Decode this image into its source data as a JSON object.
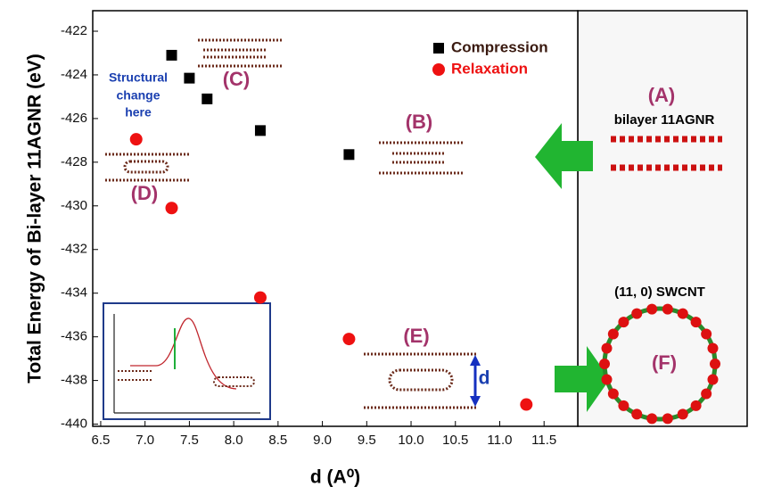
{
  "chart_data": {
    "type": "scatter",
    "x_label": "d (A⁰)",
    "y_label": "Total Energy of Bi-layer 11AGNR (eV)",
    "xlim": [
      6.41,
      11.88
    ],
    "ylim": [
      -440.1,
      -421.06
    ],
    "xticks": [
      6.5,
      {
        "value": 7,
        "label": "7.0"
      },
      7.5,
      {
        "value": 8,
        "label": "8.0"
      },
      8.5,
      {
        "value": 9,
        "label": "9.0"
      },
      9.5,
      {
        "value": 10,
        "label": "10.0"
      },
      10.5,
      {
        "value": 11,
        "label": "11.0"
      },
      11.5
    ],
    "yticks": [
      -422,
      -424,
      -426,
      -428,
      -430,
      -432,
      -434,
      -436,
      -438,
      -440
    ],
    "series": [
      {
        "name": "Compression",
        "color": "#000000",
        "marker": "square",
        "x": [
          7.3,
          7.5,
          7.7,
          8.3,
          9.3
        ],
        "values": [
          -423.1,
          -424.15,
          -425.1,
          -426.55,
          -427.65
        ]
      },
      {
        "name": "Relaxation",
        "color": "#ee1111",
        "marker": "circle",
        "x": [
          6.9,
          7.3,
          8.3,
          9.3,
          11.3
        ],
        "values": [
          -426.95,
          -430.1,
          -434.2,
          -436.1,
          -439.1
        ]
      }
    ],
    "annotations": [
      "(A)",
      "bilayer 11AGNR",
      "(B)",
      "(C)",
      "(D)",
      "(E)",
      "(F)",
      "(11, 0) SWCNT",
      "Structural",
      "change",
      "here",
      "d"
    ]
  }
}
